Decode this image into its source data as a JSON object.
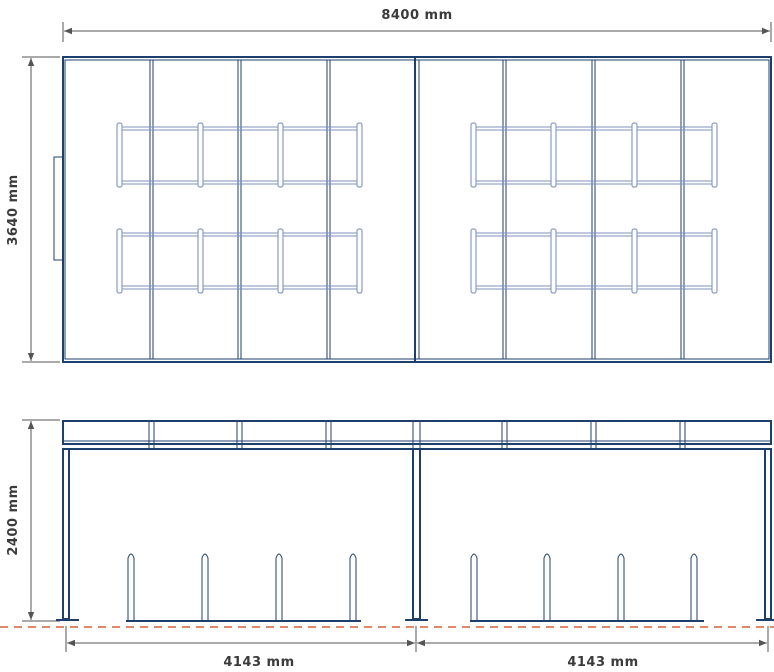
{
  "dimensions": {
    "total_width": "8400 mm",
    "depth": "3640 mm",
    "height": "2400 mm",
    "bay_left": "4143 mm",
    "bay_right": "4143 mm"
  },
  "colors": {
    "frame": "#1d3f6e",
    "rack": "#7f93be",
    "dimension_lines": "#555555",
    "ground_line": "#e0886a"
  }
}
